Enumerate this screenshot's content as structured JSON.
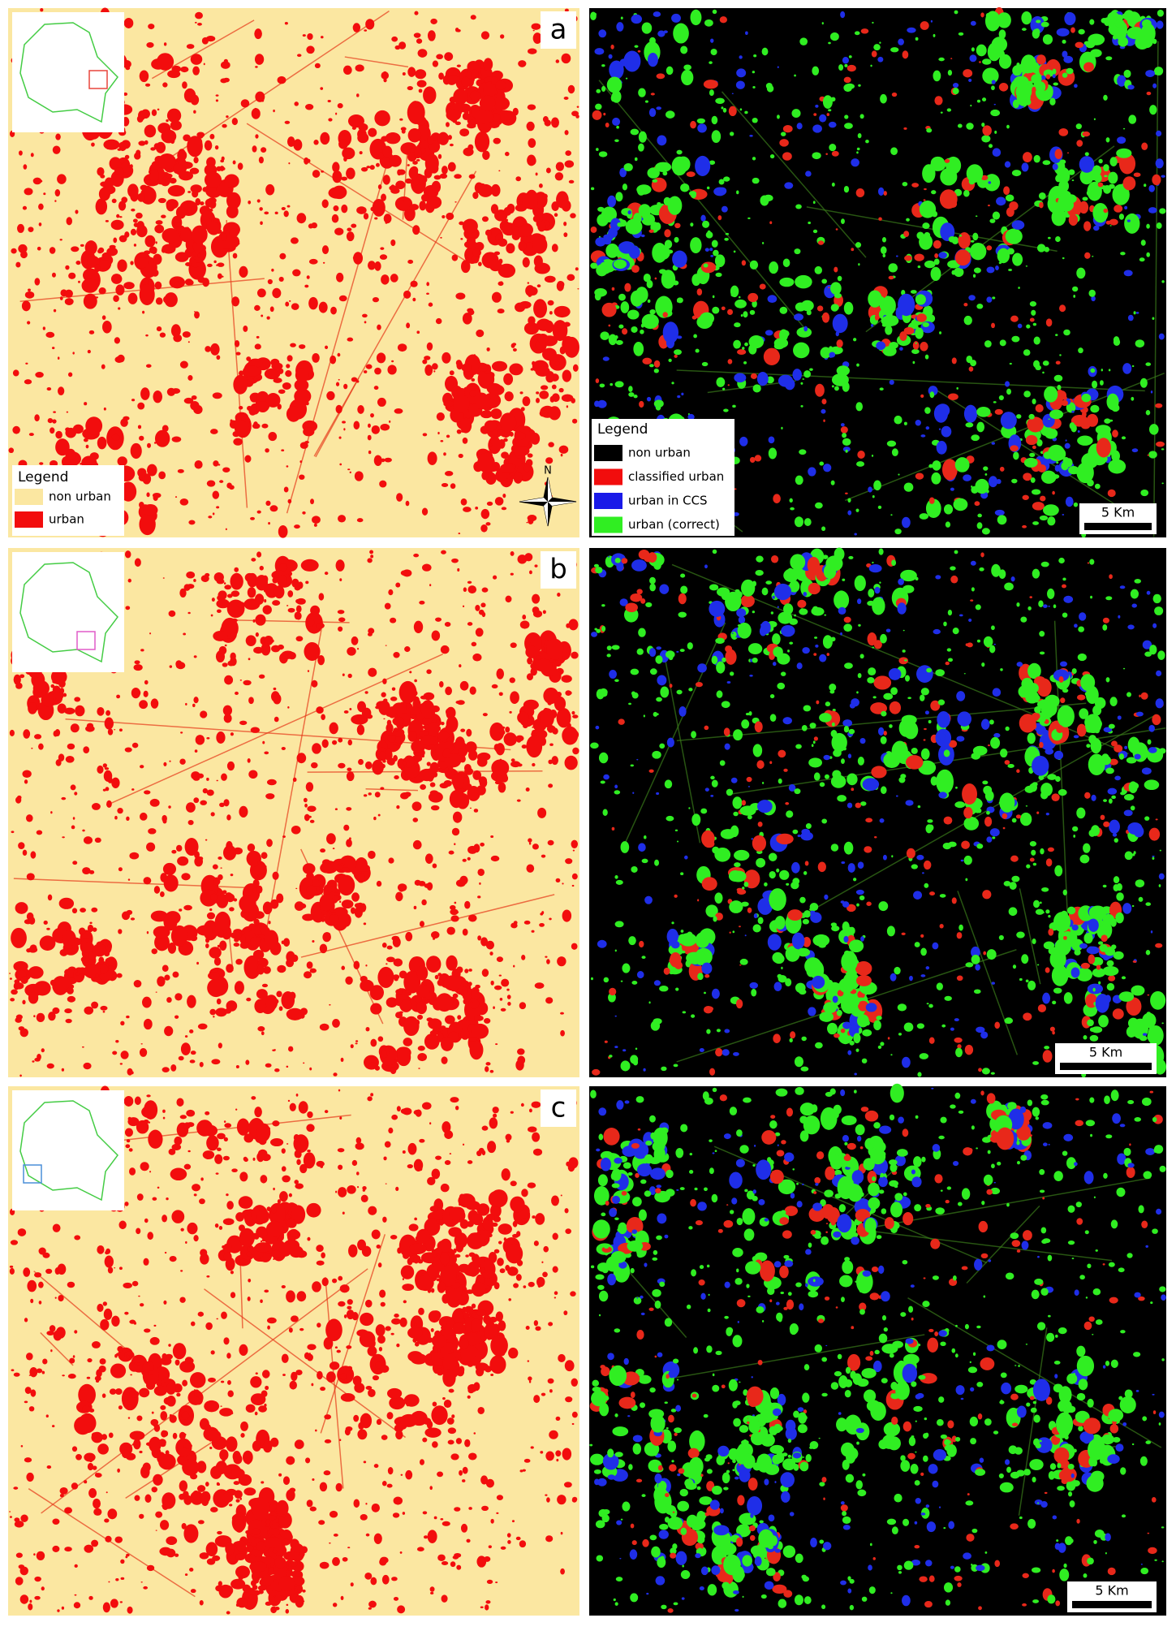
{
  "panels": [
    {
      "label": "a",
      "left_legend": {
        "title": "Legend",
        "items": [
          "non urban",
          "urban"
        ]
      },
      "north": "N",
      "right_legend": {
        "title": "Legend",
        "items": [
          "non urban",
          "classified urban",
          "urban in CCS",
          "urban (correct)"
        ]
      },
      "scale": "5 Km"
    },
    {
      "label": "b",
      "scale": "5 Km"
    },
    {
      "label": "c",
      "scale": "5 Km"
    }
  ]
}
